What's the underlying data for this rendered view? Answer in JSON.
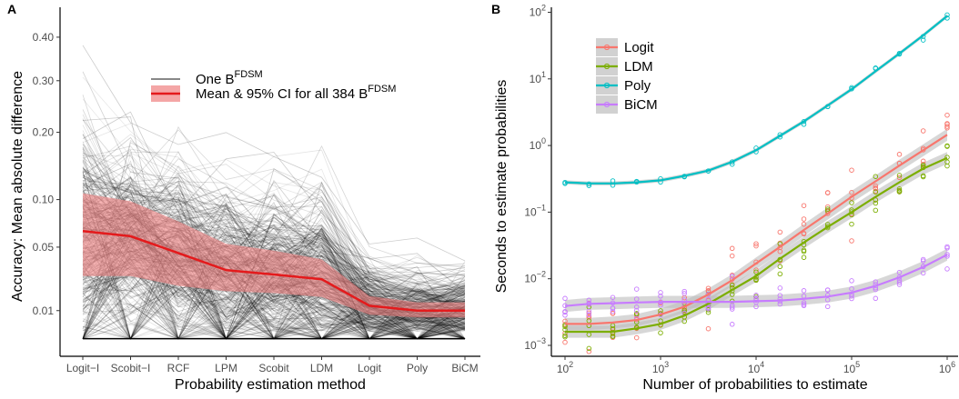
{
  "chart_data": [
    {
      "panel": "A",
      "type": "line",
      "xlabel": "Probability estimation method",
      "ylabel": "Accuracy: Mean absolute difference",
      "y_scale": "sqrt",
      "ylim": [
        0.0015,
        0.5
      ],
      "categories": [
        "Logit−I",
        "Scobit−I",
        "RCF",
        "LPM",
        "Scobit",
        "LDM",
        "Logit",
        "Poly",
        "BiCM"
      ],
      "yticks": [
        {
          "v": 0.01,
          "label": "0.01"
        },
        {
          "v": 0.05,
          "label": "0.05"
        },
        {
          "v": 0.1,
          "label": "0.10"
        },
        {
          "v": 0.2,
          "label": "0.20"
        },
        {
          "v": 0.3,
          "label": "0.30"
        },
        {
          "v": 0.4,
          "label": "0.40"
        }
      ],
      "legend": {
        "position": "top-center",
        "entries": [
          {
            "text": "One B",
            "sup": "FDSM"
          },
          {
            "text": "Mean & 95% CI for all 384 B",
            "sup": "FDSM"
          }
        ]
      },
      "n_lines": 384,
      "mean": [
        0.065,
        0.06,
        0.045,
        0.032,
        0.029,
        0.026,
        0.012,
        0.01,
        0.01
      ],
      "ci_lower": [
        0.028,
        0.028,
        0.022,
        0.019,
        0.018,
        0.016,
        0.0085,
        0.0075,
        0.0075
      ],
      "ci_upper": [
        0.108,
        0.098,
        0.075,
        0.053,
        0.047,
        0.04,
        0.0165,
        0.0135,
        0.0135
      ],
      "colors": {
        "lines": "#000000",
        "mean": "#e41a1c",
        "ci": "#f08080"
      }
    },
    {
      "panel": "B",
      "type": "scatter",
      "xlabel": "Number of probabilities to estimate",
      "ylabel": "Seconds to estimate probabilities",
      "x_scale": "log10",
      "y_scale": "log10",
      "xlim": [
        100,
        1000000
      ],
      "ylim": [
        0.001,
        100
      ],
      "xticks": [
        {
          "v": 100,
          "base": "10",
          "exp": "2"
        },
        {
          "v": 1000,
          "base": "10",
          "exp": "3"
        },
        {
          "v": 10000,
          "base": "10",
          "exp": "4"
        },
        {
          "v": 100000,
          "base": "10",
          "exp": "5"
        },
        {
          "v": 1000000,
          "base": "10",
          "exp": "6"
        }
      ],
      "yticks": [
        {
          "v": 0.001,
          "base": "10",
          "exp": "−3"
        },
        {
          "v": 0.01,
          "base": "10",
          "exp": "−2"
        },
        {
          "v": 0.1,
          "base": "10",
          "exp": "−1"
        },
        {
          "v": 1,
          "base": "10",
          "exp": "0"
        },
        {
          "v": 10,
          "base": "10",
          "exp": "1"
        },
        {
          "v": 100,
          "base": "10",
          "exp": "2"
        }
      ],
      "legend": {
        "position": "top-left"
      },
      "x": [
        100,
        178,
        316,
        562,
        1000,
        1778,
        3162,
        5623,
        10000,
        17783,
        31623,
        56234,
        100000,
        177828,
        316228,
        562341,
        1000000
      ],
      "series": [
        {
          "name": "Logit",
          "color": "#f8766d",
          "values": [
            0.0021,
            0.0021,
            0.0022,
            0.0024,
            0.0029,
            0.0038,
            0.0058,
            0.0095,
            0.017,
            0.03,
            0.054,
            0.095,
            0.17,
            0.29,
            0.5,
            0.85,
            1.45
          ]
        },
        {
          "name": "LDM",
          "color": "#7cae00",
          "values": [
            0.0016,
            0.0016,
            0.0016,
            0.0018,
            0.0021,
            0.0028,
            0.0042,
            0.0068,
            0.011,
            0.02,
            0.035,
            0.06,
            0.1,
            0.17,
            0.28,
            0.45,
            0.65
          ]
        },
        {
          "name": "Poly",
          "color": "#00bfc4",
          "values": [
            0.28,
            0.27,
            0.27,
            0.28,
            0.3,
            0.35,
            0.42,
            0.57,
            0.85,
            1.4,
            2.3,
            4.0,
            7.0,
            13,
            24,
            45,
            88
          ]
        },
        {
          "name": "BiCM",
          "color": "#c77cff",
          "values": [
            0.0039,
            0.0042,
            0.0043,
            0.0044,
            0.0045,
            0.0045,
            0.0045,
            0.0045,
            0.0046,
            0.0047,
            0.005,
            0.0054,
            0.0062,
            0.0078,
            0.0105,
            0.015,
            0.023
          ]
        }
      ]
    }
  ]
}
